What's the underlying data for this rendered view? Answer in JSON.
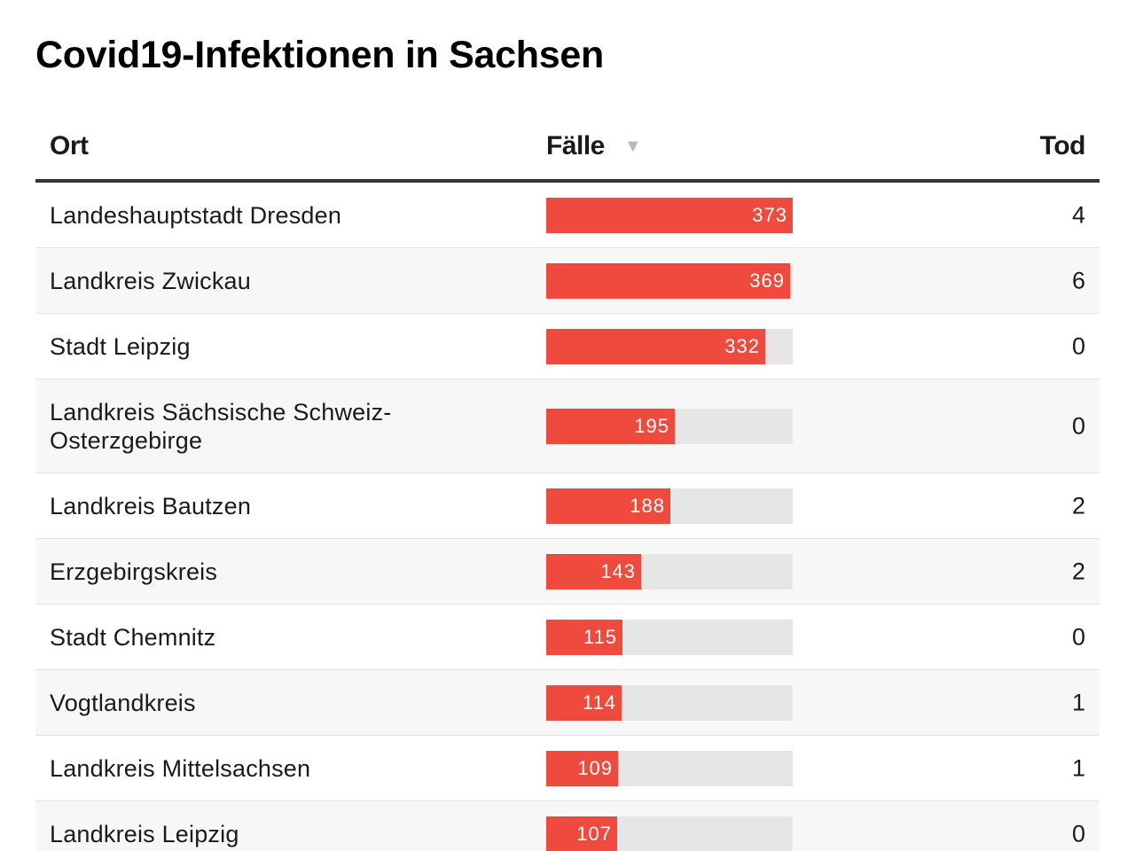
{
  "title": "Covid19-Infektionen in Sachsen",
  "table": {
    "columns": {
      "ort": "Ort",
      "faelle": "Fälle",
      "tod": "Tod"
    },
    "sort_icon": "sort-descending-icon"
  },
  "colors": {
    "bar": "#ef4a3e",
    "track": "#e6e6e6",
    "alt_row": "#f7f7f7"
  },
  "chart_data": {
    "type": "table",
    "title": "Covid19-Infektionen in Sachsen",
    "columns": [
      "Ort",
      "Fälle",
      "Tod"
    ],
    "bar_column": "Fälle",
    "bar_max": 373,
    "rows": [
      {
        "ort": "Landeshauptstadt Dresden",
        "faelle": 373,
        "tod": 4
      },
      {
        "ort": "Landkreis Zwickau",
        "faelle": 369,
        "tod": 6
      },
      {
        "ort": "Stadt Leipzig",
        "faelle": 332,
        "tod": 0
      },
      {
        "ort": "Landkreis Sächsische Schweiz-Osterzgebirge",
        "faelle": 195,
        "tod": 0
      },
      {
        "ort": "Landkreis Bautzen",
        "faelle": 188,
        "tod": 2
      },
      {
        "ort": "Erzgebirgskreis",
        "faelle": 143,
        "tod": 2
      },
      {
        "ort": "Stadt Chemnitz",
        "faelle": 115,
        "tod": 0
      },
      {
        "ort": "Vogtlandkreis",
        "faelle": 114,
        "tod": 1
      },
      {
        "ort": "Landkreis Mittelsachsen",
        "faelle": 109,
        "tod": 1
      },
      {
        "ort": "Landkreis Leipzig",
        "faelle": 107,
        "tod": 0
      }
    ]
  }
}
